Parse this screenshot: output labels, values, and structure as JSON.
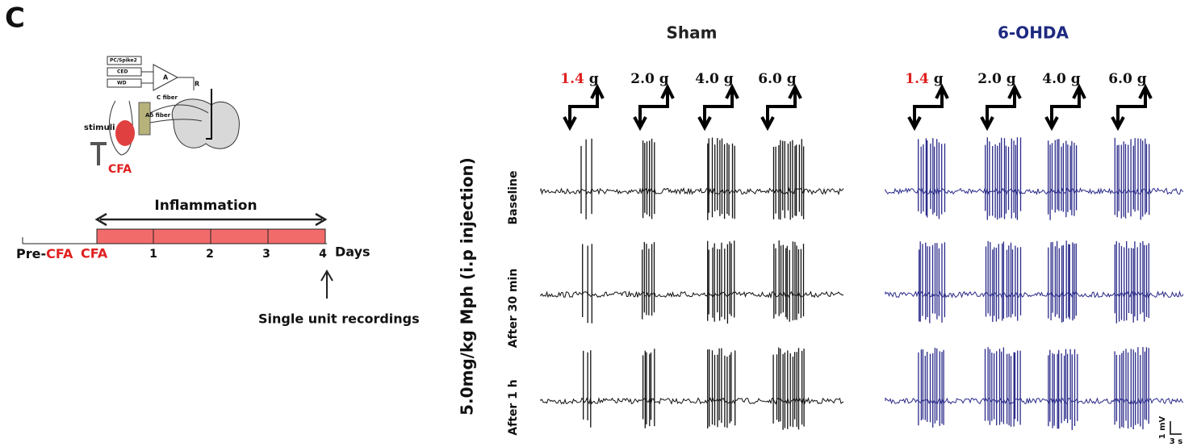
{
  "panel_label": "C",
  "schematic": {
    "boxes": [
      "PC/Spike2",
      "CED",
      "WD"
    ],
    "amplifier": "A",
    "electrode": "R",
    "fibers": [
      "C fiber",
      "Aδ fiber"
    ],
    "stimulus": "stimuli",
    "injection": "CFA"
  },
  "timeline": {
    "phase": "Inflammation",
    "start": {
      "prefix": "Pre-",
      "cfa": "CFA"
    },
    "cfa": "CFA",
    "days": [
      "1",
      "2",
      "3",
      "4"
    ],
    "unit": "Days",
    "recording": "Single unit recordings"
  },
  "recordings": {
    "y_label": "5.0mg/kg Mph  (i.p injection)",
    "rows": [
      "Baseline",
      "After 30 min",
      "After 1 h"
    ],
    "groups": [
      {
        "title": "Sham",
        "title_color": "#222222",
        "trace_color": "#111111"
      },
      {
        "title": "6-OHDA",
        "title_color": "#1e2a80",
        "trace_color": "#2a2a8a"
      }
    ],
    "forces": [
      {
        "value": "1.4",
        "unit": "g"
      },
      {
        "value": "2.0",
        "unit": "g"
      },
      {
        "value": "4.0",
        "unit": "g"
      },
      {
        "value": "6.0",
        "unit": "g"
      }
    ],
    "scale": {
      "voltage": "1 mV",
      "time": "3 s"
    }
  }
}
